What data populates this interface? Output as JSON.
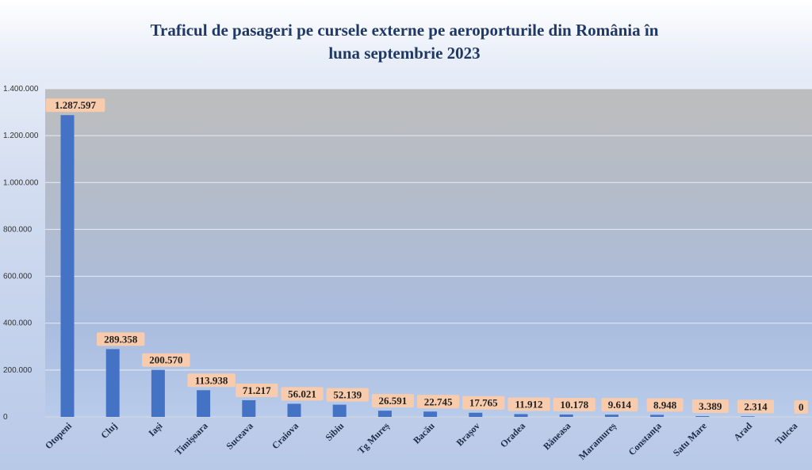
{
  "chart_data": {
    "type": "bar",
    "title_lines": [
      "Traficul de pasageri pe cursele externe pe aeroporturile din România în",
      "luna septembrie 2023"
    ],
    "categories": [
      "Otopeni",
      "Cluj",
      "Iași",
      "Timișoara",
      "Suceava",
      "Craiova",
      "Sibiu",
      "Tg Mureș",
      "Bacău",
      "Brașov",
      "Oradea",
      "Băneasa",
      "Maramureș",
      "Constanța",
      "Satu Mare",
      "Arad",
      "Tulcea"
    ],
    "values": [
      1287597,
      289358,
      200570,
      113938,
      71217,
      56021,
      52139,
      26591,
      22745,
      17765,
      11912,
      10178,
      9614,
      8948,
      3389,
      2314,
      0
    ],
    "value_labels": [
      "1.287.597",
      "289.358",
      "200.570",
      "113.938",
      "71.217",
      "56.021",
      "52.139",
      "26.591",
      "22.745",
      "17.765",
      "11.912",
      "10.178",
      "9.614",
      "8.948",
      "3.389",
      "2.314",
      "0"
    ],
    "y_ticks": [
      0,
      200000,
      400000,
      600000,
      800000,
      1000000,
      1200000,
      1400000
    ],
    "y_tick_labels": [
      "0",
      "200.000",
      "400.000",
      "600.000",
      "800.000",
      "1.000.000",
      "1.200.000",
      "1.400.000"
    ],
    "ylim": [
      0,
      1400000
    ],
    "grid": true,
    "legend": "none",
    "colors": {
      "bar": "#4472c4",
      "label_bg": "#f8cbad",
      "grid": "#e8ecf4",
      "title": "#1f3864",
      "plot_top": "#bcbcbc",
      "plot_bottom": "#b4c7e7"
    }
  }
}
